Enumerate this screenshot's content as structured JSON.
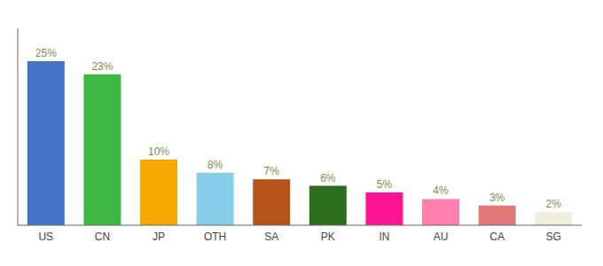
{
  "chart_data": {
    "type": "bar",
    "categories": [
      "US",
      "CN",
      "JP",
      "OTH",
      "SA",
      "PK",
      "IN",
      "AU",
      "CA",
      "SG"
    ],
    "values": [
      25,
      23,
      10,
      8,
      7,
      6,
      5,
      4,
      3,
      2
    ],
    "value_labels": [
      "25%",
      "23%",
      "10%",
      "8%",
      "7%",
      "6%",
      "5%",
      "4%",
      "3%",
      "2%"
    ],
    "colors": [
      "#4472c4",
      "#3cb843",
      "#f5a800",
      "#87ceeb",
      "#b5531a",
      "#2d6e1e",
      "#ff1493",
      "#ff80b0",
      "#e07878",
      "#f0eedc"
    ],
    "ylim": [
      0,
      30
    ],
    "data_labels": true,
    "tick_labels": "x",
    "grid": false
  }
}
